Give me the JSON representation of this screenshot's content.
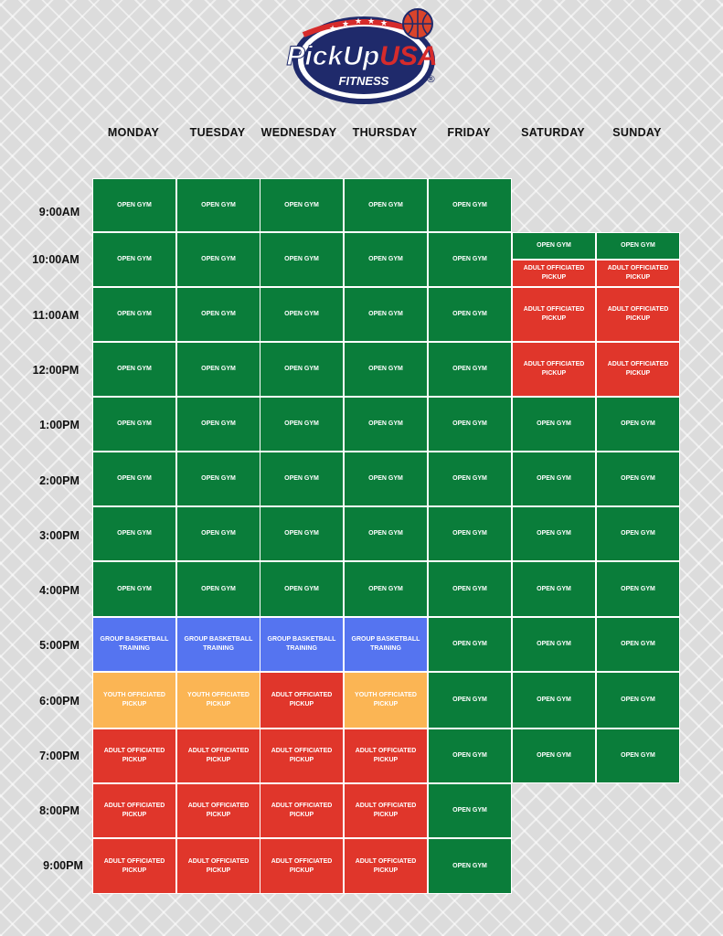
{
  "brand": {
    "line1": "PickUp",
    "line2": "USA",
    "sub": "FITNESS",
    "reg": "®"
  },
  "days": [
    "MONDAY",
    "TUESDAY",
    "WEDNESDAY",
    "THURSDAY",
    "FRIDAY",
    "SATURDAY",
    "SUNDAY"
  ],
  "times": [
    "9:00AM",
    "10:00AM",
    "11:00AM",
    "12:00PM",
    "1:00PM",
    "2:00PM",
    "3:00PM",
    "4:00PM",
    "5:00PM",
    "6:00PM",
    "7:00PM",
    "8:00PM",
    "9:00PM"
  ],
  "colors": {
    "green": "#0a7d3a",
    "red": "#e0362b",
    "blue": "#5574f0",
    "yellow": "#fbb554"
  },
  "schedule": {
    "monday": [
      {
        "label": "OPEN GYM",
        "color": "green"
      },
      {
        "label": "OPEN GYM",
        "color": "green"
      },
      {
        "label": "OPEN GYM",
        "color": "green"
      },
      {
        "label": "OPEN GYM",
        "color": "green"
      },
      {
        "label": "OPEN GYM",
        "color": "green"
      },
      {
        "label": "OPEN GYM",
        "color": "green"
      },
      {
        "label": "OPEN GYM",
        "color": "green"
      },
      {
        "label": "OPEN GYM",
        "color": "green"
      },
      {
        "label": "GROUP BASKETBALL TRAINING",
        "color": "blue"
      },
      {
        "label": "YOUTH OFFICIATED PICKUP",
        "color": "yellow"
      },
      {
        "label": "ADULT OFFICIATED PICKUP",
        "color": "red"
      },
      {
        "label": "ADULT OFFICIATED PICKUP",
        "color": "red"
      },
      {
        "label": "ADULT OFFICIATED PICKUP",
        "color": "red"
      }
    ],
    "tuesday": [
      {
        "label": "OPEN GYM",
        "color": "green"
      },
      {
        "label": "OPEN GYM",
        "color": "green"
      },
      {
        "label": "OPEN GYM",
        "color": "green"
      },
      {
        "label": "OPEN GYM",
        "color": "green"
      },
      {
        "label": "OPEN GYM",
        "color": "green"
      },
      {
        "label": "OPEN GYM",
        "color": "green"
      },
      {
        "label": "OPEN GYM",
        "color": "green"
      },
      {
        "label": "OPEN GYM",
        "color": "green"
      },
      {
        "label": "GROUP BASKETBALL TRAINING",
        "color": "blue"
      },
      {
        "label": "YOUTH OFFICIATED PICKUP",
        "color": "yellow"
      },
      {
        "label": "ADULT OFFICIATED PICKUP",
        "color": "red"
      },
      {
        "label": "ADULT OFFICIATED PICKUP",
        "color": "red"
      },
      {
        "label": "ADULT OFFICIATED PICKUP",
        "color": "red"
      }
    ],
    "wednesday": [
      {
        "label": "OPEN GYM",
        "color": "green"
      },
      {
        "label": "OPEN GYM",
        "color": "green"
      },
      {
        "label": "OPEN GYM",
        "color": "green"
      },
      {
        "label": "OPEN GYM",
        "color": "green"
      },
      {
        "label": "OPEN GYM",
        "color": "green"
      },
      {
        "label": "OPEN GYM",
        "color": "green"
      },
      {
        "label": "OPEN GYM",
        "color": "green"
      },
      {
        "label": "OPEN GYM",
        "color": "green"
      },
      {
        "label": "GROUP BASKETBALL TRAINING",
        "color": "blue"
      },
      {
        "label": "ADULT OFFICIATED PICKUP",
        "color": "red"
      },
      {
        "label": "ADULT OFFICIATED PICKUP",
        "color": "red"
      },
      {
        "label": "ADULT OFFICIATED PICKUP",
        "color": "red"
      },
      {
        "label": "ADULT OFFICIATED PICKUP",
        "color": "red"
      }
    ],
    "thursday": [
      {
        "label": "OPEN GYM",
        "color": "green"
      },
      {
        "label": "OPEN GYM",
        "color": "green"
      },
      {
        "label": "OPEN GYM",
        "color": "green"
      },
      {
        "label": "OPEN GYM",
        "color": "green"
      },
      {
        "label": "OPEN GYM",
        "color": "green"
      },
      {
        "label": "OPEN GYM",
        "color": "green"
      },
      {
        "label": "OPEN GYM",
        "color": "green"
      },
      {
        "label": "OPEN GYM",
        "color": "green"
      },
      {
        "label": "GROUP BASKETBALL TRAINING",
        "color": "blue"
      },
      {
        "label": "YOUTH OFFICIATED PICKUP",
        "color": "yellow"
      },
      {
        "label": "ADULT OFFICIATED PICKUP",
        "color": "red"
      },
      {
        "label": "ADULT OFFICIATED PICKUP",
        "color": "red"
      },
      {
        "label": "ADULT OFFICIATED PICKUP",
        "color": "red"
      }
    ],
    "friday": [
      {
        "label": "OPEN GYM",
        "color": "green"
      },
      {
        "label": "OPEN GYM",
        "color": "green"
      },
      {
        "label": "OPEN GYM",
        "color": "green"
      },
      {
        "label": "OPEN GYM",
        "color": "green"
      },
      {
        "label": "OPEN GYM",
        "color": "green"
      },
      {
        "label": "OPEN GYM",
        "color": "green"
      },
      {
        "label": "OPEN GYM",
        "color": "green"
      },
      {
        "label": "OPEN GYM",
        "color": "green"
      },
      {
        "label": "OPEN GYM",
        "color": "green"
      },
      {
        "label": "OPEN GYM",
        "color": "green"
      },
      {
        "label": "OPEN GYM",
        "color": "green"
      },
      {
        "label": "OPEN GYM",
        "color": "green"
      },
      {
        "label": "OPEN GYM",
        "color": "green"
      }
    ],
    "saturday": [
      {
        "label": "OPEN GYM",
        "color": "green"
      },
      {
        "label": "ADULT OFFICIATED PICKUP",
        "color": "red"
      },
      {
        "label": "ADULT OFFICIATED PICKUP",
        "color": "red"
      },
      {
        "label": "ADULT OFFICIATED PICKUP",
        "color": "red"
      },
      {
        "label": "OPEN GYM",
        "color": "green"
      },
      {
        "label": "OPEN GYM",
        "color": "green"
      },
      {
        "label": "OPEN GYM",
        "color": "green"
      },
      {
        "label": "OPEN GYM",
        "color": "green"
      },
      {
        "label": "OPEN GYM",
        "color": "green"
      },
      {
        "label": "OPEN GYM",
        "color": "green"
      },
      {
        "label": "OPEN GYM",
        "color": "green"
      }
    ],
    "sunday": [
      {
        "label": "OPEN GYM",
        "color": "green"
      },
      {
        "label": "ADULT OFFICIATED PICKUP",
        "color": "red"
      },
      {
        "label": "ADULT OFFICIATED PICKUP",
        "color": "red"
      },
      {
        "label": "ADULT OFFICIATED PICKUP",
        "color": "red"
      },
      {
        "label": "OPEN GYM",
        "color": "green"
      },
      {
        "label": "OPEN GYM",
        "color": "green"
      },
      {
        "label": "OPEN GYM",
        "color": "green"
      },
      {
        "label": "OPEN GYM",
        "color": "green"
      },
      {
        "label": "OPEN GYM",
        "color": "green"
      },
      {
        "label": "OPEN GYM",
        "color": "green"
      },
      {
        "label": "OPEN GYM",
        "color": "green"
      }
    ]
  }
}
